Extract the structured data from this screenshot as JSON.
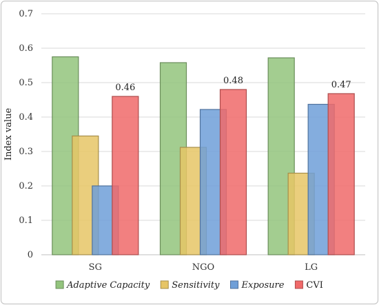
{
  "chart_data": {
    "type": "bar",
    "title": "",
    "xlabel": "",
    "ylabel": "Index value",
    "ylim": [
      0,
      0.7
    ],
    "yticks": [
      "0",
      "0.1",
      "0.2",
      "0.3",
      "0.4",
      "0.5",
      "0.6",
      "0.7"
    ],
    "grid": true,
    "legend": "bottom",
    "categories": [
      "SG",
      "NGO",
      "LG"
    ],
    "series": [
      {
        "name": "Adaptive Capacity",
        "italic": true,
        "color": "#93c47d",
        "values": [
          0.575,
          0.558,
          0.572
        ]
      },
      {
        "name": "Sensitivity",
        "italic": true,
        "color": "#e6c566",
        "values": [
          0.345,
          0.312,
          0.237
        ]
      },
      {
        "name": "Exposure",
        "italic": true,
        "color": "#6f9fd8",
        "values": [
          0.2,
          0.422,
          0.437
        ]
      },
      {
        "name": "CVI",
        "italic": false,
        "color": "#f06a6a",
        "values": [
          0.46,
          0.48,
          0.468
        ]
      }
    ],
    "data_labels": [
      {
        "series": "CVI",
        "category": "SG",
        "text": "0.46"
      },
      {
        "series": "CVI",
        "category": "NGO",
        "text": "0.48"
      },
      {
        "series": "CVI",
        "category": "LG",
        "text": "0.47"
      }
    ]
  }
}
